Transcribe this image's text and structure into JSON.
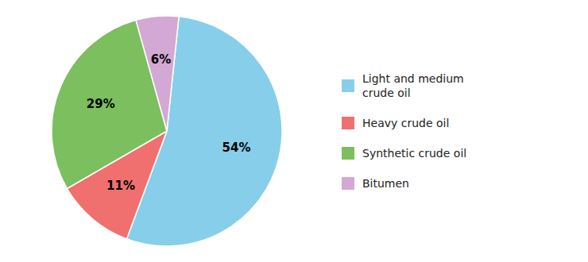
{
  "chart_data": {
    "type": "pie",
    "categories": [
      "Light and medium\ncrude oil",
      "Heavy crude oil",
      "Synthetic crude oil",
      "Bitumen"
    ],
    "values": [
      54,
      11,
      29,
      6
    ],
    "value_labels": [
      "54%",
      "11%",
      "29%",
      "6%"
    ],
    "colors": [
      "#87ceeb",
      "#f07070",
      "#7bbf5e",
      "#d4a8d4"
    ],
    "data_labels": true,
    "legend": "right"
  }
}
